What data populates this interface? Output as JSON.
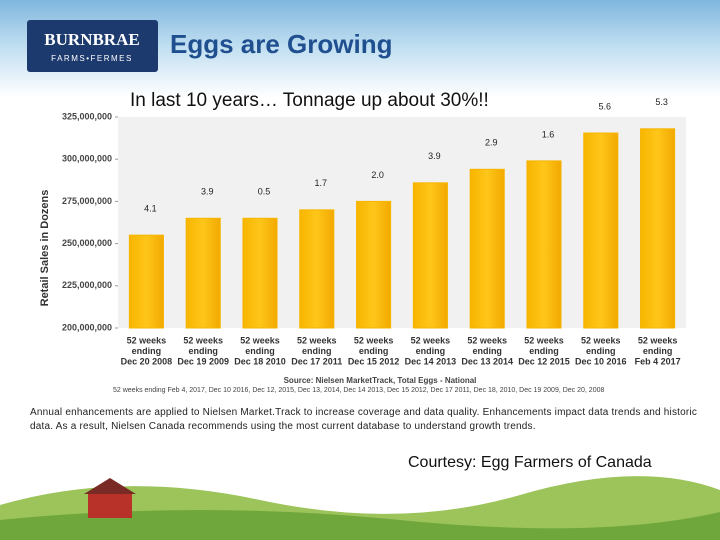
{
  "header": {
    "logo": "BURNBRAE",
    "logo_sub": "FARMS•FERMES",
    "title": "Eggs are Growing",
    "subtitle": "In last 10 years… Tonnage up about 30%!!"
  },
  "chart_data": {
    "type": "bar",
    "y_label": "Retail Sales in Dozens",
    "categories": [
      [
        "52 weeks",
        "ending",
        "Dec 20 2008"
      ],
      [
        "52 weeks",
        "ending",
        "Dec 19 2009"
      ],
      [
        "52 weeks",
        "ending",
        "Dec 18 2010"
      ],
      [
        "52 weeks",
        "ending",
        "Dec 17 2011"
      ],
      [
        "52 weeks",
        "ending",
        "Dec 15 2012"
      ],
      [
        "52 weeks",
        "ending",
        "Dec 14 2013"
      ],
      [
        "52 weeks",
        "ending",
        "Dec 13 2014"
      ],
      [
        "52 weeks",
        "ending",
        "Dec 12 2015"
      ],
      [
        "52 weeks",
        "ending",
        "Dec 10 2016"
      ],
      [
        "52 weeks",
        "ending",
        "Feb 4 2017"
      ]
    ],
    "values": [
      255000000,
      265000000,
      265000000,
      270000000,
      275000000,
      286000000,
      294000000,
      299000000,
      315500000,
      318000000
    ],
    "annotations": [
      "4.1",
      "3.9",
      "0.5",
      "1.7",
      "2.0",
      "3.9",
      "2.9",
      "1.6",
      "5.6",
      "5.3"
    ],
    "color": "#f7b500",
    "ylim": [
      200000000,
      325000000
    ],
    "yticks": [
      {
        "value": 200000000,
        "label": "200,000,000"
      },
      {
        "value": 225000000,
        "label": "225,000,000"
      },
      {
        "value": 250000000,
        "label": "250,000,000"
      },
      {
        "value": 275000000,
        "label": "275,000,000"
      },
      {
        "value": 300000000,
        "label": "300,000,000"
      },
      {
        "value": 325000000,
        "label": "325,000,000"
      }
    ],
    "grid": false,
    "source": "Source: Nielsen MarketTrack, Total Eggs - National",
    "footnote": "52 weeks ending Feb 4, 2017, Dec 10 2016, Dec 12, 2015, Dec 13, 2014, Dec 14 2013, Dec 15 2012, Dec 17 2011, Dec 18, 2010, Dec 19 2009, Dec 20, 2008"
  },
  "footer": {
    "note": "Annual enhancements are applied to Nielsen Market.Track to increase coverage and data quality. Enhancements impact data trends and historic data. As a result, Nielsen Canada recommends using the most current database to understand growth trends.",
    "courtesy": "Courtesy: Egg Farmers of Canada"
  }
}
